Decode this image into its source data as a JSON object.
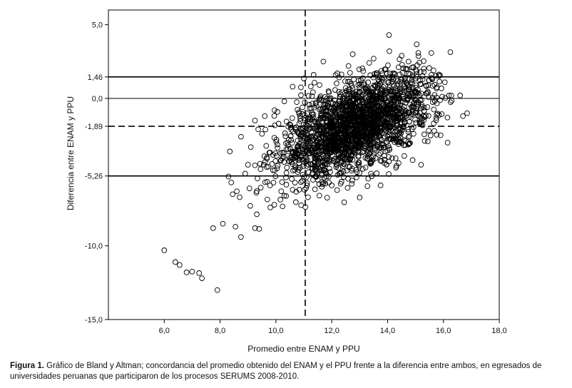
{
  "chart_data": {
    "type": "scatter",
    "title": "",
    "xlabel": "Promedio entre ENAM y PPU",
    "ylabel": "Diferencia entre ENAM y PPU",
    "xlim": [
      4.0,
      18.0
    ],
    "ylim": [
      -15.0,
      6.0
    ],
    "x_ticks": [
      6.0,
      8.0,
      10.0,
      12.0,
      14.0,
      16.0,
      18.0
    ],
    "x_tick_labels": [
      "6,0",
      "8,0",
      "10,0",
      "12,0",
      "14,0",
      "16,0",
      "18,0"
    ],
    "y_ticks": [
      5.0,
      1.46,
      0.0,
      -1.89,
      -5.26,
      -10.0,
      -15.0
    ],
    "y_tick_labels": [
      "5,0",
      "1,46",
      "0,0",
      "-1,89",
      "-5,26",
      "-10,0",
      "-15,0"
    ],
    "reference_lines": [
      {
        "axis": "y",
        "value": 1.46,
        "style": "solid"
      },
      {
        "axis": "y",
        "value": 0.0,
        "style": "solid-thin"
      },
      {
        "axis": "y",
        "value": -1.89,
        "style": "dashed"
      },
      {
        "axis": "y",
        "value": -5.26,
        "style": "solid"
      },
      {
        "axis": "x",
        "value": 11.05,
        "style": "dashed"
      }
    ],
    "marker": "open-circle",
    "grid": false,
    "outliers": [
      [
        6.0,
        -10.3
      ],
      [
        6.4,
        -11.1
      ],
      [
        6.55,
        -11.3
      ],
      [
        6.8,
        -11.8
      ],
      [
        7.0,
        -11.75
      ],
      [
        7.25,
        -11.85
      ],
      [
        7.35,
        -12.2
      ],
      [
        7.9,
        -13.0
      ],
      [
        7.75,
        -8.8
      ],
      [
        8.1,
        -8.5
      ],
      [
        8.55,
        -8.7
      ],
      [
        8.75,
        -9.4
      ],
      [
        9.25,
        -8.8
      ],
      [
        9.4,
        -8.85
      ],
      [
        8.3,
        -5.3
      ],
      [
        8.4,
        -5.7
      ],
      [
        8.6,
        -6.3
      ],
      [
        8.7,
        -6.7
      ],
      [
        8.35,
        -3.6
      ],
      [
        8.75,
        -2.6
      ],
      [
        9.1,
        -3.3
      ],
      [
        9.25,
        -1.5
      ],
      [
        9.6,
        -1.2
      ],
      [
        9.95,
        -0.8
      ],
      [
        14.05,
        4.3
      ],
      [
        13.5,
        2.7
      ],
      [
        12.6,
        2.2
      ],
      [
        11.7,
        2.5
      ],
      [
        12.75,
        3.0
      ],
      [
        14.75,
        2.5
      ],
      [
        15.6,
        1.3
      ],
      [
        16.2,
        0.2
      ],
      [
        16.85,
        -1.0
      ],
      [
        16.15,
        -3.0
      ],
      [
        12.9,
        -5.0
      ],
      [
        13.75,
        -5.9
      ],
      [
        15.2,
        -4.5
      ],
      [
        14.6,
        -3.9
      ],
      [
        9.45,
        -4.8
      ],
      [
        9.8,
        -7.4
      ],
      [
        10.3,
        -6.6
      ],
      [
        10.6,
        -6.2
      ],
      [
        11.15,
        -6.7
      ],
      [
        12.0,
        -5.9
      ],
      [
        11.35,
        1.6
      ],
      [
        12.2,
        1.7
      ],
      [
        11.0,
        1.35
      ],
      [
        10.6,
        0.8
      ],
      [
        15.3,
        1.8
      ],
      [
        16.05,
        1.1
      ],
      [
        16.6,
        0.2
      ],
      [
        16.7,
        -1.2
      ],
      [
        15.9,
        -2.5
      ],
      [
        14.3,
        -4.7
      ],
      [
        10.3,
        -0.2
      ],
      [
        9.0,
        -4.5
      ],
      [
        8.9,
        -5.1
      ],
      [
        9.05,
        -6.1
      ],
      [
        9.3,
        -6.4
      ],
      [
        8.45,
        -6.5
      ]
    ],
    "cluster": {
      "approx_points": 2200,
      "x_range": [
        9.0,
        16.3
      ],
      "mean_x": 12.9,
      "sd_x": 1.35,
      "mean_y": -1.89,
      "sd_y": 1.45,
      "slope": 0.75
    }
  },
  "caption": {
    "label": "Figura 1.",
    "text": " Gráfico de Bland y Altman; concordancia del promedio obtenido del ENAM y el PPU frente a la diferencia entre ambos, en egresados de universidades peruanas que participaron de los procesos SERUMS 2008-2010."
  }
}
